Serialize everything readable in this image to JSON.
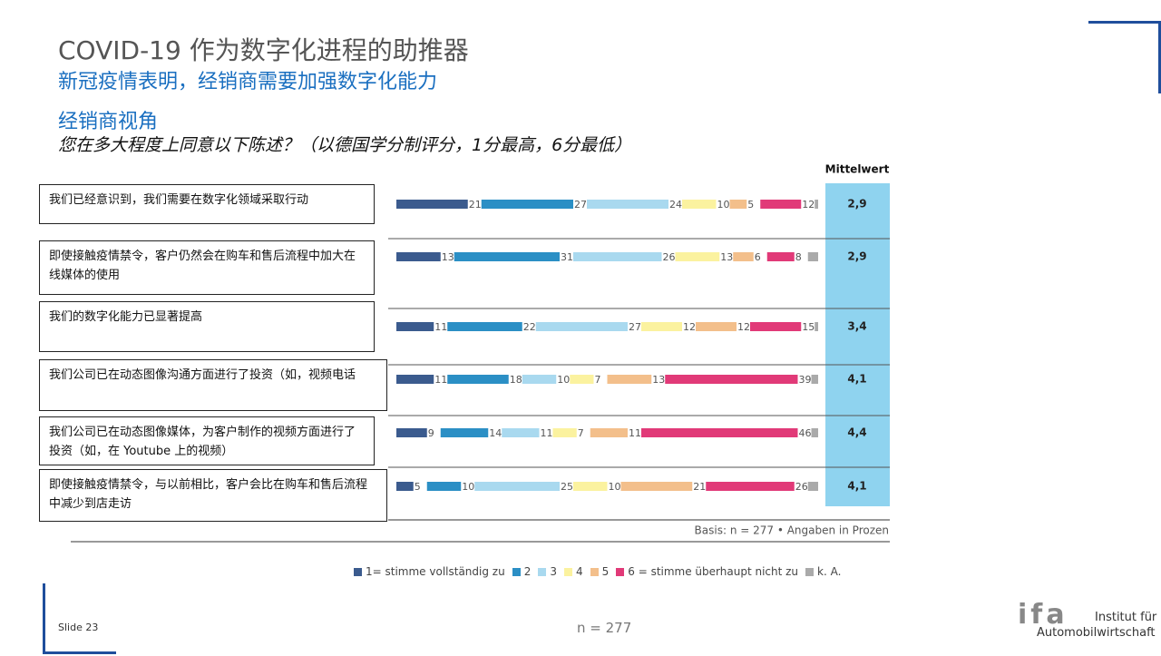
{
  "header": {
    "title": "COVID-19 作为数字化进程的助推器",
    "subtitle": "新冠疫情表明，经销商需要加强数字化能力",
    "section": "经销商视角",
    "question": "您在多大程度上同意以下陈述？（以德国学分制评分，1分最高，6分最低）"
  },
  "chart_data": {
    "type": "stacked-bar-horizontal",
    "categories": [
      "我们已经意识到，我们需要在数字化领域采取行动",
      "即使接触疫情禁令，客户仍然会在购车和售后流程中加大在线媒体的使用",
      "我们的数字化能力已显著提高",
      "我们公司已在动态图像沟通方面进行了投资（如，视频电话",
      "我们公司已在动态图像媒体，为客户制作的视频方面进行了投资（如，在 Youtube 上的视频）",
      "即使接触疫情禁令，与以前相比，客户会比在购车和售后流程中减少到店走访"
    ],
    "series": [
      {
        "name": "1= stimme vollständig zu",
        "color": "#3b5b8e",
        "values": [
          21,
          13,
          11,
          11,
          9,
          5
        ]
      },
      {
        "name": "2",
        "color": "#2b8fc5",
        "values": [
          27,
          31,
          22,
          18,
          14,
          10
        ]
      },
      {
        "name": "3",
        "color": "#a9d9ef",
        "values": [
          24,
          26,
          27,
          10,
          11,
          25
        ]
      },
      {
        "name": "4",
        "color": "#fbf29f",
        "values": [
          10,
          13,
          12,
          7,
          7,
          10
        ]
      },
      {
        "name": "5",
        "color": "#f3bf8b",
        "values": [
          5,
          6,
          12,
          13,
          11,
          21
        ]
      },
      {
        "name": "6 = stimme überhaupt nicht zu",
        "color": "#e13a78",
        "values": [
          12,
          8,
          15,
          39,
          46,
          26
        ]
      },
      {
        "name": "k. A.",
        "color": "#aaaaaa",
        "values": [
          1,
          3,
          1,
          2,
          2,
          3
        ]
      }
    ],
    "mean_title": "Mittelwert",
    "mean_labels": [
      "2,9",
      "2,9",
      "3,4",
      "4,1",
      "4,4",
      "4,1"
    ],
    "basis": "Basis: n = 277 • Angaben in Prozen"
  },
  "footer": {
    "slide": "Slide 23",
    "n": "n = 277",
    "logo": "ifa",
    "institute_line1": "Institut für",
    "institute_line2": "Automobilwirtschaft"
  }
}
